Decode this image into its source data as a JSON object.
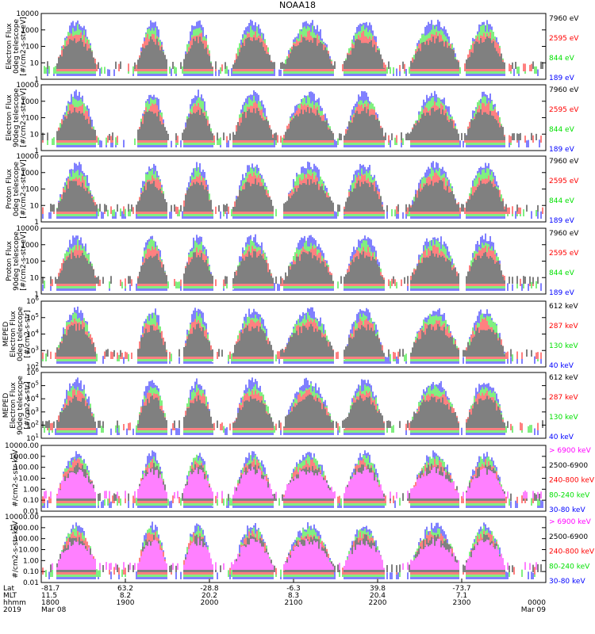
{
  "title": "NOAA18",
  "colors": {
    "black": "#000000",
    "red": "#ff0000",
    "green": "#00e000",
    "blue": "#0000ff",
    "magenta": "#ff00ff"
  },
  "chart_data": [
    {
      "type": "line",
      "ylabel": [
        "Electron Flux",
        "0deg telescope",
        "[#/cm2-s-str-eV]"
      ],
      "log": true,
      "ylim": [
        1,
        10000
      ],
      "ticks": [
        "1",
        "10",
        "100",
        "1000",
        "10000"
      ],
      "series": [
        {
          "name": "7960 eV",
          "color": "black"
        },
        {
          "name": "2595 eV",
          "color": "red"
        },
        {
          "name": "844 eV",
          "color": "green"
        },
        {
          "name": "189 eV",
          "color": "blue"
        }
      ]
    },
    {
      "type": "line",
      "ylabel": [
        "Electron Flux",
        "90deg telescope",
        "[#/cm2-s-str-eV]"
      ],
      "log": true,
      "ylim": [
        1,
        10000
      ],
      "ticks": [
        "1",
        "10",
        "100",
        "1000",
        "10000"
      ],
      "series": [
        {
          "name": "7960 eV",
          "color": "black"
        },
        {
          "name": "2595 eV",
          "color": "red"
        },
        {
          "name": "844 eV",
          "color": "green"
        },
        {
          "name": "189 eV",
          "color": "blue"
        }
      ]
    },
    {
      "type": "line",
      "ylabel": [
        "Proton Flux",
        "0deg telescope",
        "[#/cm2-s-str-eV]"
      ],
      "log": true,
      "ylim": [
        1,
        10000
      ],
      "ticks": [
        "1",
        "10",
        "100",
        "1000",
        "10000"
      ],
      "series": [
        {
          "name": "7960 eV",
          "color": "black"
        },
        {
          "name": "2595 eV",
          "color": "red"
        },
        {
          "name": "844 eV",
          "color": "green"
        },
        {
          "name": "189 eV",
          "color": "blue"
        }
      ]
    },
    {
      "type": "line",
      "ylabel": [
        "Proton Flux",
        "90deg telescope",
        "[#/cm2-s-str-eV]"
      ],
      "log": true,
      "ylim": [
        1,
        10000
      ],
      "ticks": [
        "1",
        "10",
        "100",
        "1000",
        "10000"
      ],
      "series": [
        {
          "name": "7960 eV",
          "color": "black"
        },
        {
          "name": "2595 eV",
          "color": "red"
        },
        {
          "name": "844 eV",
          "color": "green"
        },
        {
          "name": "189 eV",
          "color": "blue"
        }
      ]
    },
    {
      "type": "line",
      "ylabel": [
        "MEPED",
        "Electron Flux",
        "0deg telescope",
        "[#/cm2-s-str]"
      ],
      "log": true,
      "ylim": [
        100,
        1000000
      ],
      "ticks": [
        "10^2",
        "10^3",
        "10^4",
        "10^5",
        "10^6"
      ],
      "series": [
        {
          "name": "612 keV",
          "color": "black"
        },
        {
          "name": "287 keV",
          "color": "red"
        },
        {
          "name": "130 keV",
          "color": "green"
        },
        {
          "name": "40 keV",
          "color": "blue"
        }
      ]
    },
    {
      "type": "line",
      "ylabel": [
        "MEPED",
        "Electron Flux",
        "90deg telescope",
        "[#/cm2-s-str]"
      ],
      "log": true,
      "ylim": [
        10,
        1000000
      ],
      "ticks": [
        "10^1",
        "10^2",
        "10^3",
        "10^4",
        "10^5",
        "10^6"
      ],
      "series": [
        {
          "name": "612 keV",
          "color": "black"
        },
        {
          "name": "287 keV",
          "color": "red"
        },
        {
          "name": "130 keV",
          "color": "green"
        },
        {
          "name": "40 keV",
          "color": "blue"
        }
      ]
    },
    {
      "type": "line",
      "ylabel": [
        "#/cm2-s-str-keV"
      ],
      "log": true,
      "ylim": [
        0.01,
        10000
      ],
      "ticks": [
        "0.01",
        "0.10",
        "1.00",
        "10.00",
        "100.00",
        "1000.00",
        "10000.00"
      ],
      "series": [
        {
          "name": "> 6900 keV",
          "color": "magenta"
        },
        {
          "name": "2500-6900",
          "color": "black"
        },
        {
          "name": "240-800 keV",
          "color": "red"
        },
        {
          "name": "80-240 keV",
          "color": "green"
        },
        {
          "name": "30-80 keV",
          "color": "blue"
        }
      ]
    },
    {
      "type": "line",
      "ylabel": [
        "#/cm2-s-str-keV"
      ],
      "log": true,
      "ylim": [
        0.01,
        10000
      ],
      "ticks": [
        "0.01",
        "0.10",
        "1.00",
        "10.00",
        "100.00",
        "1000.00",
        "10000.00"
      ],
      "series": [
        {
          "name": "> 6900 keV",
          "color": "magenta"
        },
        {
          "name": "2500-6900",
          "color": "black"
        },
        {
          "name": "240-800 keV",
          "color": "red"
        },
        {
          "name": "80-240 keV",
          "color": "green"
        },
        {
          "name": "30-80 keV",
          "color": "blue"
        }
      ]
    }
  ],
  "x_axis": {
    "rows": [
      {
        "label": "Lat",
        "values": [
          "-81.7",
          "63.2",
          "-28.8",
          "-6.3",
          "39.8",
          "-73.7",
          ""
        ]
      },
      {
        "label": "MLT",
        "values": [
          "11.5",
          "8.2",
          "20.2",
          "8.3",
          "20.4",
          "7.1",
          ""
        ]
      },
      {
        "label": "hhmm",
        "values": [
          "1800",
          "1900",
          "2000",
          "2100",
          "2200",
          "2300",
          "0000"
        ]
      },
      {
        "label": "2019",
        "values": [
          "Mar 08",
          "",
          "",
          "",
          "",
          "",
          "Mar 09"
        ]
      }
    ]
  },
  "events": [
    {
      "x": 0.07,
      "w": 0.04
    },
    {
      "x": 0.22,
      "w": 0.03
    },
    {
      "x": 0.31,
      "w": 0.03
    },
    {
      "x": 0.42,
      "w": 0.04
    },
    {
      "x": 0.53,
      "w": 0.05
    },
    {
      "x": 0.64,
      "w": 0.04
    },
    {
      "x": 0.78,
      "w": 0.05
    },
    {
      "x": 0.88,
      "w": 0.04
    }
  ]
}
